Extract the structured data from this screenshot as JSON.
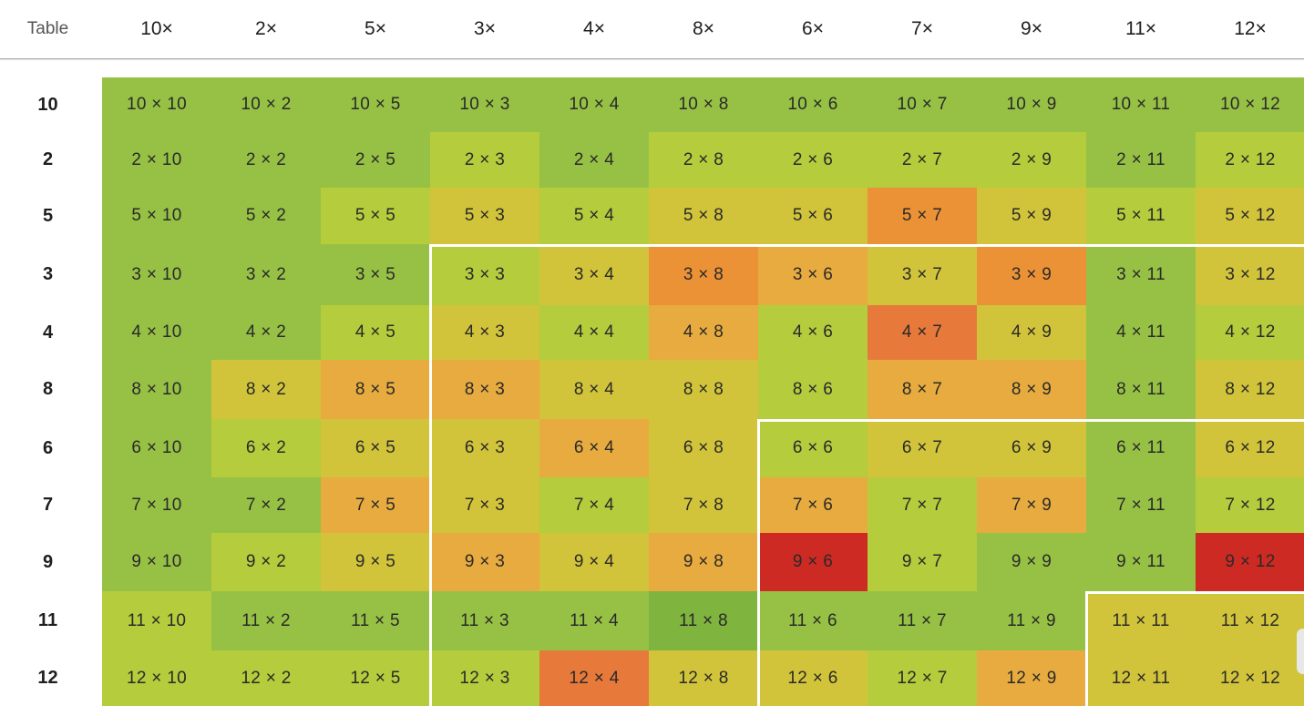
{
  "header": {
    "corner_label": "Table",
    "columns": [
      "10×",
      "2×",
      "5×",
      "3×",
      "4×",
      "8×",
      "6×",
      "7×",
      "9×",
      "11×",
      "12×"
    ]
  },
  "rows": [
    {
      "label": "10",
      "cells": [
        {
          "text": "10 × 10",
          "color": "#97c145"
        },
        {
          "text": "10 × 2",
          "color": "#97c145"
        },
        {
          "text": "10 × 5",
          "color": "#97c145"
        },
        {
          "text": "10 × 3",
          "color": "#97c145"
        },
        {
          "text": "10 × 4",
          "color": "#97c145"
        },
        {
          "text": "10 × 8",
          "color": "#97c145"
        },
        {
          "text": "10 × 6",
          "color": "#97c145"
        },
        {
          "text": "10 × 7",
          "color": "#97c145"
        },
        {
          "text": "10 × 9",
          "color": "#97c145"
        },
        {
          "text": "10 × 11",
          "color": "#97c145"
        },
        {
          "text": "10 × 12",
          "color": "#97c145"
        }
      ]
    },
    {
      "label": "2",
      "cells": [
        {
          "text": "2 × 10",
          "color": "#97c145"
        },
        {
          "text": "2 × 2",
          "color": "#97c145"
        },
        {
          "text": "2 × 5",
          "color": "#97c145"
        },
        {
          "text": "2 × 3",
          "color": "#b5cc3c"
        },
        {
          "text": "2 × 4",
          "color": "#97c145"
        },
        {
          "text": "2 × 8",
          "color": "#b5cc3c"
        },
        {
          "text": "2 × 6",
          "color": "#b5cc3c"
        },
        {
          "text": "2 × 7",
          "color": "#b5cc3c"
        },
        {
          "text": "2 × 9",
          "color": "#b5cc3c"
        },
        {
          "text": "2 × 11",
          "color": "#97c145"
        },
        {
          "text": "2 × 12",
          "color": "#b5cc3c"
        }
      ]
    },
    {
      "label": "5",
      "cells": [
        {
          "text": "5 × 10",
          "color": "#97c145"
        },
        {
          "text": "5 × 2",
          "color": "#97c145"
        },
        {
          "text": "5 × 5",
          "color": "#b5cc3c"
        },
        {
          "text": "5 × 3",
          "color": "#d2c43a"
        },
        {
          "text": "5 × 4",
          "color": "#b5cc3c"
        },
        {
          "text": "5 × 8",
          "color": "#d2c43a"
        },
        {
          "text": "5 × 6",
          "color": "#d2c43a"
        },
        {
          "text": "5 × 7",
          "color": "#ec9236"
        },
        {
          "text": "5 × 9",
          "color": "#d2c43a"
        },
        {
          "text": "5 × 11",
          "color": "#b5cc3c"
        },
        {
          "text": "5 × 12",
          "color": "#d2c43a"
        }
      ]
    },
    {
      "label": "3",
      "cells": [
        {
          "text": "3 × 10",
          "color": "#97c145"
        },
        {
          "text": "3 × 2",
          "color": "#97c145"
        },
        {
          "text": "3 × 5",
          "color": "#97c145"
        },
        {
          "text": "3 × 3",
          "color": "#b5cc3c"
        },
        {
          "text": "3 × 4",
          "color": "#d2c43a"
        },
        {
          "text": "3 × 8",
          "color": "#ec9236"
        },
        {
          "text": "3 × 6",
          "color": "#e8ab3f"
        },
        {
          "text": "3 × 7",
          "color": "#d2c43a"
        },
        {
          "text": "3 × 9",
          "color": "#ec9236"
        },
        {
          "text": "3 × 11",
          "color": "#97c145"
        },
        {
          "text": "3 × 12",
          "color": "#d2c43a"
        }
      ]
    },
    {
      "label": "4",
      "cells": [
        {
          "text": "4 × 10",
          "color": "#97c145"
        },
        {
          "text": "4 × 2",
          "color": "#97c145"
        },
        {
          "text": "4 × 5",
          "color": "#b5cc3c"
        },
        {
          "text": "4 × 3",
          "color": "#d2c43a"
        },
        {
          "text": "4 × 4",
          "color": "#b5cc3c"
        },
        {
          "text": "4 × 8",
          "color": "#e8ab3f"
        },
        {
          "text": "4 × 6",
          "color": "#b5cc3c"
        },
        {
          "text": "4 × 7",
          "color": "#e7793a"
        },
        {
          "text": "4 × 9",
          "color": "#d2c43a"
        },
        {
          "text": "4 × 11",
          "color": "#97c145"
        },
        {
          "text": "4 × 12",
          "color": "#b5cc3c"
        }
      ]
    },
    {
      "label": "8",
      "cells": [
        {
          "text": "8 × 10",
          "color": "#97c145"
        },
        {
          "text": "8 × 2",
          "color": "#d2c43a"
        },
        {
          "text": "8 × 5",
          "color": "#e8ab3f"
        },
        {
          "text": "8 × 3",
          "color": "#e8ab3f"
        },
        {
          "text": "8 × 4",
          "color": "#d2c43a"
        },
        {
          "text": "8 × 8",
          "color": "#d2c43a"
        },
        {
          "text": "8 × 6",
          "color": "#b5cc3c"
        },
        {
          "text": "8 × 7",
          "color": "#e8ab3f"
        },
        {
          "text": "8 × 9",
          "color": "#e8ab3f"
        },
        {
          "text": "8 × 11",
          "color": "#97c145"
        },
        {
          "text": "8 × 12",
          "color": "#d2c43a"
        }
      ]
    },
    {
      "label": "6",
      "cells": [
        {
          "text": "6 × 10",
          "color": "#97c145"
        },
        {
          "text": "6 × 2",
          "color": "#b5cc3c"
        },
        {
          "text": "6 × 5",
          "color": "#d2c43a"
        },
        {
          "text": "6 × 3",
          "color": "#d2c43a"
        },
        {
          "text": "6 × 4",
          "color": "#e8ab3f"
        },
        {
          "text": "6 × 8",
          "color": "#d2c43a"
        },
        {
          "text": "6 × 6",
          "color": "#b5cc3c"
        },
        {
          "text": "6 × 7",
          "color": "#d2c43a"
        },
        {
          "text": "6 × 9",
          "color": "#d2c43a"
        },
        {
          "text": "6 × 11",
          "color": "#97c145"
        },
        {
          "text": "6 × 12",
          "color": "#d2c43a"
        }
      ]
    },
    {
      "label": "7",
      "cells": [
        {
          "text": "7 × 10",
          "color": "#97c145"
        },
        {
          "text": "7 × 2",
          "color": "#97c145"
        },
        {
          "text": "7 × 5",
          "color": "#e8ab3f"
        },
        {
          "text": "7 × 3",
          "color": "#d2c43a"
        },
        {
          "text": "7 × 4",
          "color": "#b5cc3c"
        },
        {
          "text": "7 × 8",
          "color": "#d2c43a"
        },
        {
          "text": "7 × 6",
          "color": "#e8ab3f"
        },
        {
          "text": "7 × 7",
          "color": "#b5cc3c"
        },
        {
          "text": "7 × 9",
          "color": "#e8ab3f"
        },
        {
          "text": "7 × 11",
          "color": "#97c145"
        },
        {
          "text": "7 × 12",
          "color": "#b5cc3c"
        }
      ]
    },
    {
      "label": "9",
      "cells": [
        {
          "text": "9 × 10",
          "color": "#97c145"
        },
        {
          "text": "9 × 2",
          "color": "#b5cc3c"
        },
        {
          "text": "9 × 5",
          "color": "#d2c43a"
        },
        {
          "text": "9 × 3",
          "color": "#e8ab3f"
        },
        {
          "text": "9 × 4",
          "color": "#d2c43a"
        },
        {
          "text": "9 × 8",
          "color": "#e8ab3f"
        },
        {
          "text": "9 × 6",
          "color": "#cc2a23"
        },
        {
          "text": "9 × 7",
          "color": "#b5cc3c"
        },
        {
          "text": "9 × 9",
          "color": "#97c145"
        },
        {
          "text": "9 × 11",
          "color": "#97c145"
        },
        {
          "text": "9 × 12",
          "color": "#cc2a23"
        }
      ]
    },
    {
      "label": "11",
      "cells": [
        {
          "text": "11 × 10",
          "color": "#b5cc3c"
        },
        {
          "text": "11 × 2",
          "color": "#97c145"
        },
        {
          "text": "11 × 5",
          "color": "#97c145"
        },
        {
          "text": "11 × 3",
          "color": "#97c145"
        },
        {
          "text": "11 × 4",
          "color": "#97c145"
        },
        {
          "text": "11 × 8",
          "color": "#7fb43e"
        },
        {
          "text": "11 × 6",
          "color": "#97c145"
        },
        {
          "text": "11 × 7",
          "color": "#97c145"
        },
        {
          "text": "11 × 9",
          "color": "#97c145"
        },
        {
          "text": "11 × 11",
          "color": "#d2c43a"
        },
        {
          "text": "11 × 12",
          "color": "#d2c43a"
        }
      ]
    },
    {
      "label": "12",
      "cells": [
        {
          "text": "12 × 10",
          "color": "#b5cc3c"
        },
        {
          "text": "12 × 2",
          "color": "#b5cc3c"
        },
        {
          "text": "12 × 5",
          "color": "#b5cc3c"
        },
        {
          "text": "12 × 3",
          "color": "#b5cc3c"
        },
        {
          "text": "12 × 4",
          "color": "#e7793a"
        },
        {
          "text": "12 × 8",
          "color": "#d2c43a"
        },
        {
          "text": "12 × 6",
          "color": "#d2c43a"
        },
        {
          "text": "12 × 7",
          "color": "#b5cc3c"
        },
        {
          "text": "12 × 9",
          "color": "#e8ab3f"
        },
        {
          "text": "12 × 11",
          "color": "#d2c43a"
        },
        {
          "text": "12 × 12",
          "color": "#d2c43a"
        }
      ]
    }
  ]
}
